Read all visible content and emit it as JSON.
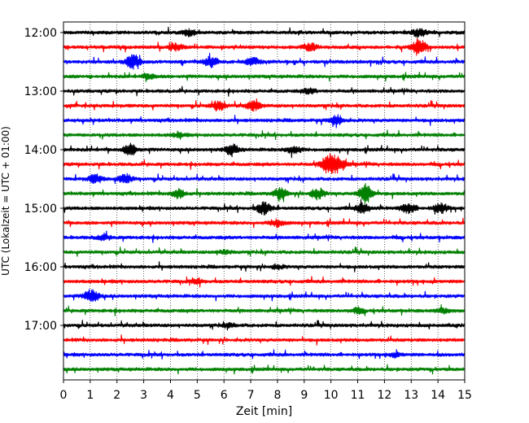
{
  "chart_data": {
    "type": "line",
    "xlabel": "Zeit  [min]",
    "ylabel": "UTC (Lokalzeit = UTC + 01:00)",
    "xlim": [
      0,
      15
    ],
    "x_ticks": [
      "0",
      "1",
      "2",
      "3",
      "4",
      "5",
      "6",
      "7",
      "8",
      "9",
      "10",
      "11",
      "12",
      "13",
      "14",
      "15"
    ],
    "y_ticks": [
      "12:00",
      "13:00",
      "14:00",
      "15:00",
      "16:00",
      "17:00"
    ],
    "vertical_grid": "dotted",
    "trace_colors": [
      "#000000",
      "#ff0000",
      "#0000ff",
      "#008000"
    ],
    "traces": [
      {
        "start": "12:00",
        "color": "#000000",
        "bursts": [
          {
            "x": 4.7,
            "amp": 0.25
          },
          {
            "x": 13.3,
            "amp": 0.35
          }
        ]
      },
      {
        "start": "12:15",
        "color": "#ff0000",
        "bursts": [
          {
            "x": 4.2,
            "amp": 0.3
          },
          {
            "x": 9.2,
            "amp": 0.3
          },
          {
            "x": 13.3,
            "amp": 0.7
          }
        ]
      },
      {
        "start": "12:30",
        "color": "#0000ff",
        "bursts": [
          {
            "x": 2.6,
            "amp": 0.6
          },
          {
            "x": 5.5,
            "amp": 0.4
          },
          {
            "x": 7.1,
            "amp": 0.3
          }
        ]
      },
      {
        "start": "12:45",
        "color": "#008000",
        "bursts": [
          {
            "x": 3.2,
            "amp": 0.2
          }
        ]
      },
      {
        "start": "13:00",
        "color": "#000000",
        "bursts": [
          {
            "x": 9.2,
            "amp": 0.2
          }
        ]
      },
      {
        "start": "13:15",
        "color": "#ff0000",
        "bursts": [
          {
            "x": 5.8,
            "amp": 0.4
          },
          {
            "x": 7.1,
            "amp": 0.4
          }
        ]
      },
      {
        "start": "13:30",
        "color": "#0000ff",
        "bursts": [
          {
            "x": 10.2,
            "amp": 0.4
          }
        ]
      },
      {
        "start": "13:45",
        "color": "#008000",
        "bursts": [
          {
            "x": 4.3,
            "amp": 0.15
          }
        ]
      },
      {
        "start": "14:00",
        "color": "#000000",
        "bursts": [
          {
            "x": 2.5,
            "amp": 0.45
          },
          {
            "x": 6.3,
            "amp": 0.4
          },
          {
            "x": 8.6,
            "amp": 0.35
          }
        ]
      },
      {
        "start": "14:15",
        "color": "#ff0000",
        "bursts": [
          {
            "x": 9.9,
            "amp": 0.8
          },
          {
            "x": 10.3,
            "amp": 0.6
          }
        ]
      },
      {
        "start": "14:30",
        "color": "#0000ff",
        "bursts": [
          {
            "x": 1.2,
            "amp": 0.35
          },
          {
            "x": 2.3,
            "amp": 0.4
          }
        ]
      },
      {
        "start": "14:45",
        "color": "#008000",
        "bursts": [
          {
            "x": 4.3,
            "amp": 0.35
          },
          {
            "x": 8.1,
            "amp": 0.45
          },
          {
            "x": 9.5,
            "amp": 0.45
          },
          {
            "x": 11.3,
            "amp": 0.8
          }
        ]
      },
      {
        "start": "15:00",
        "color": "#000000",
        "bursts": [
          {
            "x": 7.5,
            "amp": 0.55
          },
          {
            "x": 11.2,
            "amp": 0.4
          },
          {
            "x": 12.9,
            "amp": 0.45
          },
          {
            "x": 14.1,
            "amp": 0.4
          }
        ]
      },
      {
        "start": "15:15",
        "color": "#ff0000",
        "bursts": [
          {
            "x": 8.0,
            "amp": 0.3
          }
        ]
      },
      {
        "start": "15:30",
        "color": "#0000ff",
        "bursts": [
          {
            "x": 1.5,
            "amp": 0.2
          }
        ]
      },
      {
        "start": "15:45",
        "color": "#008000",
        "bursts": [
          {
            "x": 6.0,
            "amp": 0.15
          }
        ]
      },
      {
        "start": "16:00",
        "color": "#000000",
        "bursts": [
          {
            "x": 8.0,
            "amp": 0.15
          }
        ]
      },
      {
        "start": "16:15",
        "color": "#ff0000",
        "bursts": [
          {
            "x": 5.0,
            "amp": 0.15
          }
        ]
      },
      {
        "start": "16:30",
        "color": "#0000ff",
        "bursts": [
          {
            "x": 1.05,
            "amp": 0.55
          }
        ]
      },
      {
        "start": "16:45",
        "color": "#008000",
        "bursts": [
          {
            "x": 11.0,
            "amp": 0.2
          },
          {
            "x": 14.2,
            "amp": 0.2
          }
        ]
      },
      {
        "start": "17:00",
        "color": "#000000",
        "bursts": [
          {
            "x": 6.2,
            "amp": 0.15
          }
        ]
      },
      {
        "start": "17:15",
        "color": "#ff0000",
        "bursts": []
      },
      {
        "start": "17:30",
        "color": "#0000ff",
        "bursts": [
          {
            "x": 12.4,
            "amp": 0.15
          }
        ]
      },
      {
        "start": "17:45",
        "color": "#008000",
        "bursts": []
      }
    ]
  }
}
